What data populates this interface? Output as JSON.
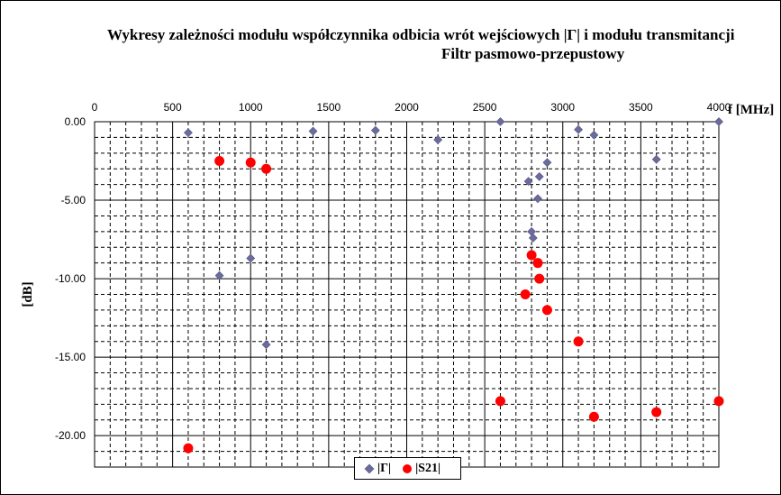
{
  "chart_data": {
    "type": "scatter",
    "title": "Wykresy zależności modułu współczynnika odbicia wrót wejściowych |Γ| i modułu transmitancji",
    "subtitle": "Filtr pasmowo-przepustowy",
    "xlabel": "f [MHz]",
    "ylabel": "[dB]",
    "xlim": [
      0,
      4000
    ],
    "ylim": [
      -22,
      0
    ],
    "x_ticks": [
      "0",
      "500",
      "1000",
      "1500",
      "2000",
      "2500",
      "3000",
      "3500",
      "4000"
    ],
    "y_ticks": [
      "0.00",
      "-5.00",
      "-10.00",
      "-15.00",
      "-20.00"
    ],
    "x_axis_position": "top",
    "grid": true,
    "legend_position": "bottom-center",
    "series": [
      {
        "name": "|Γ|",
        "marker": "diamond",
        "color": "#6b6b9e",
        "points": [
          [
            600,
            -0.7
          ],
          [
            800,
            -9.8
          ],
          [
            1000,
            -8.7
          ],
          [
            1100,
            -14.2
          ],
          [
            1400,
            -0.6
          ],
          [
            1800,
            -0.55
          ],
          [
            2200,
            -1.15
          ],
          [
            2600,
            0.0
          ],
          [
            2780,
            -3.8
          ],
          [
            2800,
            -7.0
          ],
          [
            2810,
            -7.4
          ],
          [
            2840,
            -4.9
          ],
          [
            2850,
            -3.5
          ],
          [
            2900,
            -2.6
          ],
          [
            3100,
            -0.5
          ],
          [
            3200,
            -0.85
          ],
          [
            3600,
            -2.4
          ],
          [
            4000,
            0.0
          ]
        ]
      },
      {
        "name": "|S21|",
        "marker": "circle",
        "color": "#ff0000",
        "points": [
          [
            600,
            -20.8
          ],
          [
            800,
            -2.5
          ],
          [
            1000,
            -2.6
          ],
          [
            1100,
            -3.0
          ],
          [
            2600,
            -17.8
          ],
          [
            2760,
            -11.0
          ],
          [
            2800,
            -8.5
          ],
          [
            2840,
            -9.0
          ],
          [
            2850,
            -10.0
          ],
          [
            2900,
            -12.0
          ],
          [
            3100,
            -14.0
          ],
          [
            3200,
            -18.8
          ],
          [
            3600,
            -18.5
          ],
          [
            4000,
            -17.8
          ]
        ]
      }
    ]
  }
}
